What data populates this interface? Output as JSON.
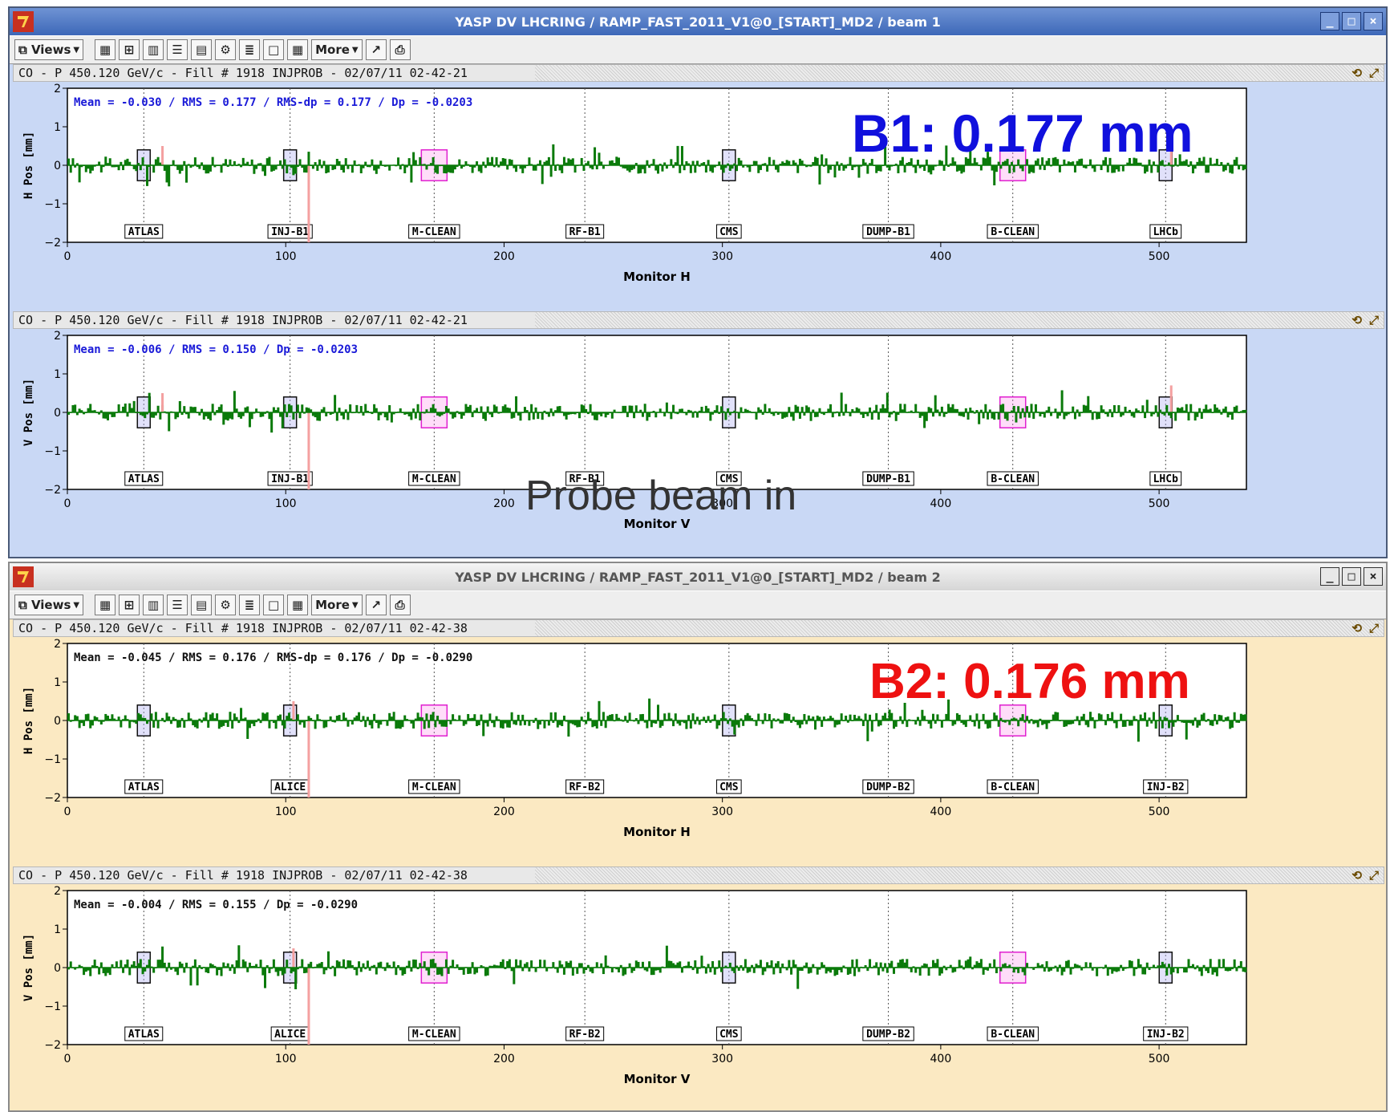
{
  "windows": [
    {
      "title": "YASP DV LHCRING / RAMP_FAST_2011_V1@0_[START]_MD2 / beam 1",
      "toolbar": {
        "views_label": "Views",
        "more_label": "More"
      },
      "annotation": {
        "text": "B1: 0.177 mm",
        "color": "#1010dd"
      },
      "panels": [
        {
          "header": "CO - P 450.120 GeV/c - Fill # 1918 INJPROB - 02/07/11 02-42-21",
          "stats": "Mean =   -0.030  / RMS =    0.177  / RMS-dp =    0.177  / Dp = -0.0203",
          "stats_color": "#1a1ad8",
          "ylabel": "H Pos [mm]",
          "xlabel": "Monitor H"
        },
        {
          "header": "CO - P 450.120 GeV/c - Fill # 1918 INJPROB - 02/07/11 02-42-21",
          "stats": "Mean =   -0.006  / RMS =    0.150  / Dp = -0.0203",
          "stats_color": "#1a1ad8",
          "ylabel": "V Pos [mm]",
          "xlabel": "Monitor V"
        }
      ],
      "ip_labels": [
        "ATLAS",
        "INJ-B1",
        "M-CLEAN",
        "RF-B1",
        "CMS",
        "DUMP-B1",
        "B-CLEAN",
        "LHCb"
      ]
    },
    {
      "title": "YASP DV LHCRING / RAMP_FAST_2011_V1@0_[START]_MD2 / beam 2",
      "toolbar": {
        "views_label": "Views",
        "more_label": "More"
      },
      "annotation": {
        "text": "B2: 0.176 mm",
        "color": "#ee1111"
      },
      "panels": [
        {
          "header": "CO - P  450.120 GeV/c - Fill # 1918 INJPROB - 02/07/11 02-42-38",
          "stats": "Mean =   -0.045  / RMS =    0.176  / RMS-dp =    0.176  / Dp = -0.0290",
          "stats_color": "#111111",
          "ylabel": "H Pos [mm]",
          "xlabel": "Monitor H"
        },
        {
          "header": "CO - P  450.120 GeV/c - Fill # 1918 INJPROB - 02/07/11 02-42-38",
          "stats": "Mean =   -0.004  / RMS =    0.155  / Dp = -0.0290",
          "stats_color": "#111111",
          "ylabel": "V Pos [mm]",
          "xlabel": "Monitor V"
        }
      ],
      "ip_labels": [
        "ATLAS",
        "ALICE",
        "M-CLEAN",
        "RF-B2",
        "CMS",
        "DUMP-B2",
        "B-CLEAN",
        "INJ-B2"
      ]
    }
  ],
  "overlay_text": "Probe beam in",
  "chart_data": {
    "type": "bar",
    "x_range": [
      0,
      540
    ],
    "y_range": [
      -2,
      2
    ],
    "x_ticks": [
      0,
      100,
      200,
      300,
      400,
      500
    ],
    "y_ticks": [
      -2,
      -1,
      0,
      1,
      2
    ],
    "grid": "vertical dotted lines at IP markers",
    "bar_color": "#0a7a0a",
    "highlight_color": "#f4a0a0"
  }
}
